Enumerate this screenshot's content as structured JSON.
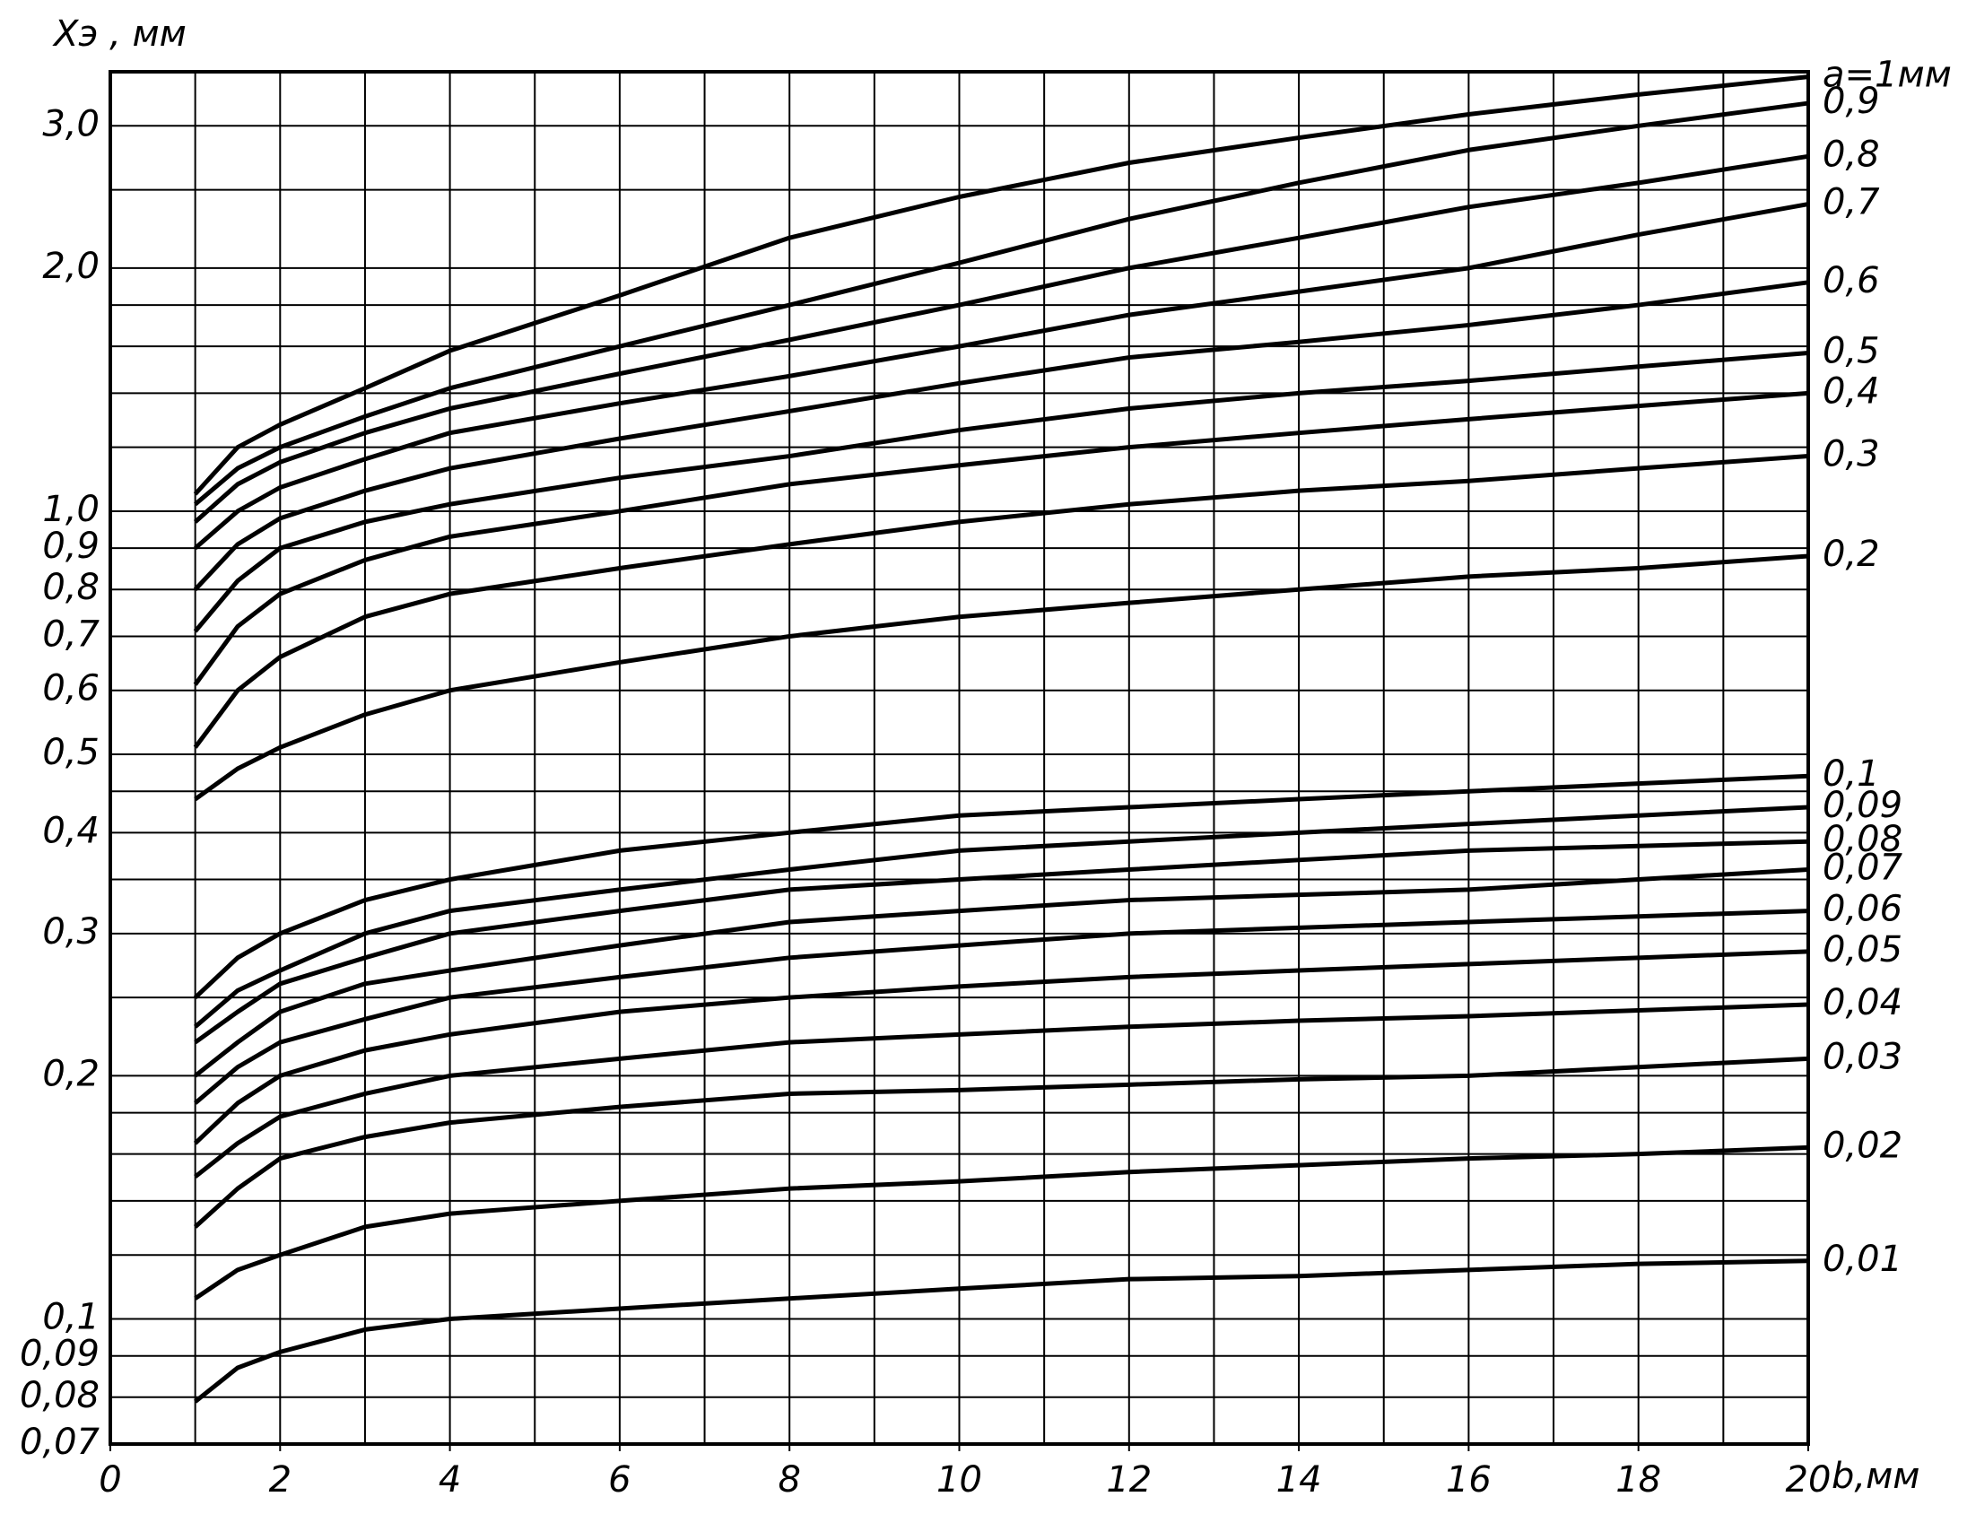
{
  "chart_data": {
    "type": "line",
    "y_label": "Xэ , мм",
    "x_label": "b,мм",
    "x": [
      1,
      1.5,
      2,
      3,
      4,
      6,
      8,
      10,
      12,
      14,
      16,
      18,
      20
    ],
    "xlim": [
      0,
      20
    ],
    "xticks": [
      0,
      2,
      4,
      6,
      8,
      10,
      12,
      14,
      16,
      18,
      20
    ],
    "ylim": [
      0.07,
      3.5
    ],
    "log_y": true,
    "grid": true,
    "color": "#000000",
    "yticks": [
      {
        "value": 0.07,
        "label": "0,07"
      },
      {
        "value": 0.08,
        "label": "0,08"
      },
      {
        "value": 0.09,
        "label": "0,09"
      },
      {
        "value": 0.1,
        "label": "0,1"
      },
      {
        "value": 0.2,
        "label": "0,2"
      },
      {
        "value": 0.3,
        "label": "0,3"
      },
      {
        "value": 0.4,
        "label": "0,4"
      },
      {
        "value": 0.5,
        "label": "0,5"
      },
      {
        "value": 0.6,
        "label": "0,6"
      },
      {
        "value": 0.7,
        "label": "0,7"
      },
      {
        "value": 0.8,
        "label": "0,8"
      },
      {
        "value": 0.9,
        "label": "0,9"
      },
      {
        "value": 1,
        "label": "1,0"
      },
      {
        "value": 2,
        "label": "2,0"
      },
      {
        "value": 3,
        "label": "3,0"
      }
    ],
    "minor_ygrid": [
      0.12,
      0.14,
      0.16,
      0.18,
      0.25,
      0.35,
      0.45,
      1.2,
      1.4,
      1.6,
      1.8,
      2.5
    ],
    "xgrid_step": 1,
    "series": [
      {
        "name": "a=1мм",
        "values": [
          1.05,
          1.2,
          1.28,
          1.42,
          1.58,
          1.85,
          2.18,
          2.45,
          2.7,
          2.9,
          3.1,
          3.28,
          3.45
        ]
      },
      {
        "name": "0,9",
        "values": [
          1.02,
          1.13,
          1.2,
          1.31,
          1.42,
          1.6,
          1.8,
          2.03,
          2.3,
          2.55,
          2.8,
          3.0,
          3.2
        ]
      },
      {
        "name": "0,8",
        "values": [
          0.97,
          1.08,
          1.15,
          1.25,
          1.34,
          1.48,
          1.63,
          1.8,
          2.0,
          2.18,
          2.38,
          2.55,
          2.75
        ]
      },
      {
        "name": "0,7",
        "values": [
          0.9,
          1.0,
          1.07,
          1.16,
          1.25,
          1.36,
          1.47,
          1.6,
          1.75,
          1.87,
          2.0,
          2.2,
          2.4
        ]
      },
      {
        "name": "0,6",
        "values": [
          0.8,
          0.91,
          0.98,
          1.06,
          1.13,
          1.23,
          1.33,
          1.44,
          1.55,
          1.62,
          1.7,
          1.8,
          1.92
        ]
      },
      {
        "name": "0,5",
        "values": [
          0.71,
          0.82,
          0.9,
          0.97,
          1.02,
          1.1,
          1.17,
          1.26,
          1.34,
          1.4,
          1.45,
          1.51,
          1.57
        ]
      },
      {
        "name": "0,4",
        "values": [
          0.61,
          0.72,
          0.79,
          0.87,
          0.93,
          1.0,
          1.08,
          1.14,
          1.2,
          1.25,
          1.3,
          1.35,
          1.4
        ]
      },
      {
        "name": "0,3",
        "values": [
          0.51,
          0.6,
          0.66,
          0.74,
          0.79,
          0.85,
          0.91,
          0.97,
          1.02,
          1.06,
          1.09,
          1.13,
          1.17
        ]
      },
      {
        "name": "0,2",
        "values": [
          0.44,
          0.48,
          0.51,
          0.56,
          0.6,
          0.65,
          0.7,
          0.74,
          0.77,
          0.8,
          0.83,
          0.85,
          0.88
        ]
      },
      {
        "name": "0,1",
        "values": [
          0.25,
          0.28,
          0.3,
          0.33,
          0.35,
          0.38,
          0.4,
          0.42,
          0.43,
          0.44,
          0.45,
          0.46,
          0.47
        ]
      },
      {
        "name": "0,09",
        "values": [
          0.23,
          0.255,
          0.27,
          0.3,
          0.32,
          0.34,
          0.36,
          0.38,
          0.39,
          0.4,
          0.41,
          0.42,
          0.43
        ]
      },
      {
        "name": "0,08",
        "values": [
          0.22,
          0.24,
          0.26,
          0.28,
          0.3,
          0.32,
          0.34,
          0.35,
          0.36,
          0.37,
          0.38,
          0.385,
          0.39
        ]
      },
      {
        "name": "0,07",
        "values": [
          0.2,
          0.22,
          0.24,
          0.26,
          0.27,
          0.29,
          0.31,
          0.32,
          0.33,
          0.335,
          0.34,
          0.35,
          0.36
        ]
      },
      {
        "name": "0,06",
        "values": [
          0.185,
          0.205,
          0.22,
          0.235,
          0.25,
          0.265,
          0.28,
          0.29,
          0.3,
          0.305,
          0.31,
          0.315,
          0.32
        ]
      },
      {
        "name": "0,05",
        "values": [
          0.165,
          0.185,
          0.2,
          0.215,
          0.225,
          0.24,
          0.25,
          0.258,
          0.265,
          0.27,
          0.275,
          0.28,
          0.285
        ]
      },
      {
        "name": "0,04",
        "values": [
          0.15,
          0.165,
          0.178,
          0.19,
          0.2,
          0.21,
          0.22,
          0.225,
          0.23,
          0.234,
          0.237,
          0.241,
          0.245
        ]
      },
      {
        "name": "0,03",
        "values": [
          0.13,
          0.145,
          0.158,
          0.168,
          0.175,
          0.183,
          0.19,
          0.192,
          0.195,
          0.198,
          0.2,
          0.205,
          0.21
        ]
      },
      {
        "name": "0,02",
        "values": [
          0.106,
          0.115,
          0.12,
          0.13,
          0.135,
          0.14,
          0.145,
          0.148,
          0.152,
          0.155,
          0.158,
          0.16,
          0.163
        ]
      },
      {
        "name": "0,01",
        "values": [
          0.079,
          0.087,
          0.091,
          0.097,
          0.1,
          0.103,
          0.106,
          0.109,
          0.112,
          0.113,
          0.115,
          0.117,
          0.118
        ]
      }
    ]
  }
}
